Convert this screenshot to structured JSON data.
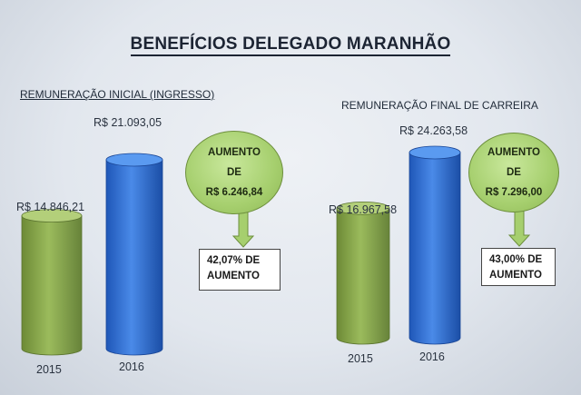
{
  "title": "BENEFÍCIOS DELEGADO MARANHÃO",
  "colors": {
    "bar_2015": "#7f9d45",
    "bar_2016": "#2f6fd0",
    "bubble": "#a6cf6e"
  },
  "chart_data": [
    {
      "type": "bar",
      "title": "REMUNERAÇÃO INICIAL (INGRESSO)",
      "categories": [
        "2015",
        "2016"
      ],
      "values": [
        14846.21,
        21093.05
      ],
      "value_labels": [
        "R$ 14.846,21",
        "R$ 21.093,05"
      ],
      "increase_bubble": [
        "AUMENTO",
        "DE",
        "R$ 6.246,84"
      ],
      "increase_box": [
        "42,07% DE",
        "AUMENTO"
      ]
    },
    {
      "type": "bar",
      "title": "REMUNERAÇÃO FINAL DE CARREIRA",
      "categories": [
        "2015",
        "2016"
      ],
      "values": [
        16967.58,
        24263.58
      ],
      "value_labels": [
        "R$ 16.967,58",
        "R$ 24.263,58"
      ],
      "increase_bubble": [
        "AUMENTO",
        "DE",
        "R$ 7.296,00"
      ],
      "increase_box": [
        "43,00% DE",
        "AUMENTO"
      ]
    }
  ]
}
